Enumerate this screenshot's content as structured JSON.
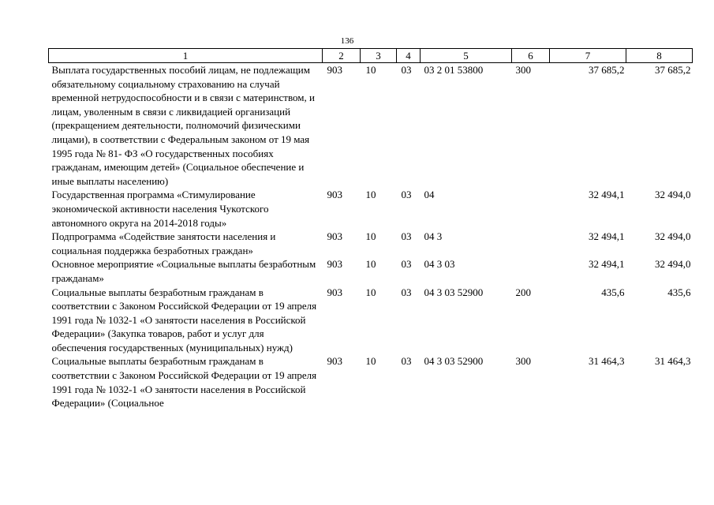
{
  "page_number": "136",
  "table": {
    "headers": [
      "1",
      "2",
      "3",
      "4",
      "5",
      "6",
      "7",
      "8"
    ],
    "rows": [
      {
        "description": "Выплата государственных пособий лицам, не подлежащим обязательному социальному страхованию на случай временной нетрудоспособности и в связи с материнством, и лицам, уволенным в связи с ликвидацией организаций (прекращением деятельности, полномочий физическими лицами), в соответствии с Федеральным законом от 19 мая 1995 года № 81- ФЗ «О государственных пособиях гражданам, имеющим детей» (Социальное обеспечение и иные выплаты населению)",
        "c2": "903",
        "c3": "10",
        "c4": "03",
        "c5": "03 2 01 53800",
        "c6": "300",
        "c7": "37 685,2",
        "c8": "37 685,2"
      },
      {
        "description": "Государственная программа «Стимулирование экономической активности населения Чукотского автономного округа на 2014-2018 годы»",
        "c2": "903",
        "c3": "10",
        "c4": "03",
        "c5": "04",
        "c6": "",
        "c7": "32 494,1",
        "c8": "32 494,0"
      },
      {
        "description": "Подпрограмма «Содействие занятости населения и социальная поддержка безработных граждан»",
        "c2": "903",
        "c3": "10",
        "c4": "03",
        "c5": "04 3",
        "c6": "",
        "c7": "32 494,1",
        "c8": "32 494,0"
      },
      {
        "description": "Основное мероприятие «Социальные выплаты безработным гражданам»",
        "c2": "903",
        "c3": "10",
        "c4": "03",
        "c5": "04 3 03",
        "c6": "",
        "c7": "32 494,1",
        "c8": "32 494,0"
      },
      {
        "description": "Социальные выплаты безработным гражданам в соответствии с Законом Российской Федерации от 19 апреля 1991 года № 1032-1 «О занятости населения в Российской Федерации» (Закупка товаров, работ и услуг для обеспечения государственных (муниципальных) нужд)",
        "c2": "903",
        "c3": "10",
        "c4": "03",
        "c5": "04 3 03 52900",
        "c6": "200",
        "c7": "435,6",
        "c8": "435,6"
      },
      {
        "description": "Социальные выплаты безработным гражданам в соответствии с Законом Российской Федерации от 19 апреля 1991 года № 1032-1 «О занятости населения в Российской Федерации» (Социальное",
        "c2": "903",
        "c3": "10",
        "c4": "03",
        "c5": "04 3 03 52900",
        "c6": "300",
        "c7": "31 464,3",
        "c8": "31 464,3"
      }
    ]
  }
}
